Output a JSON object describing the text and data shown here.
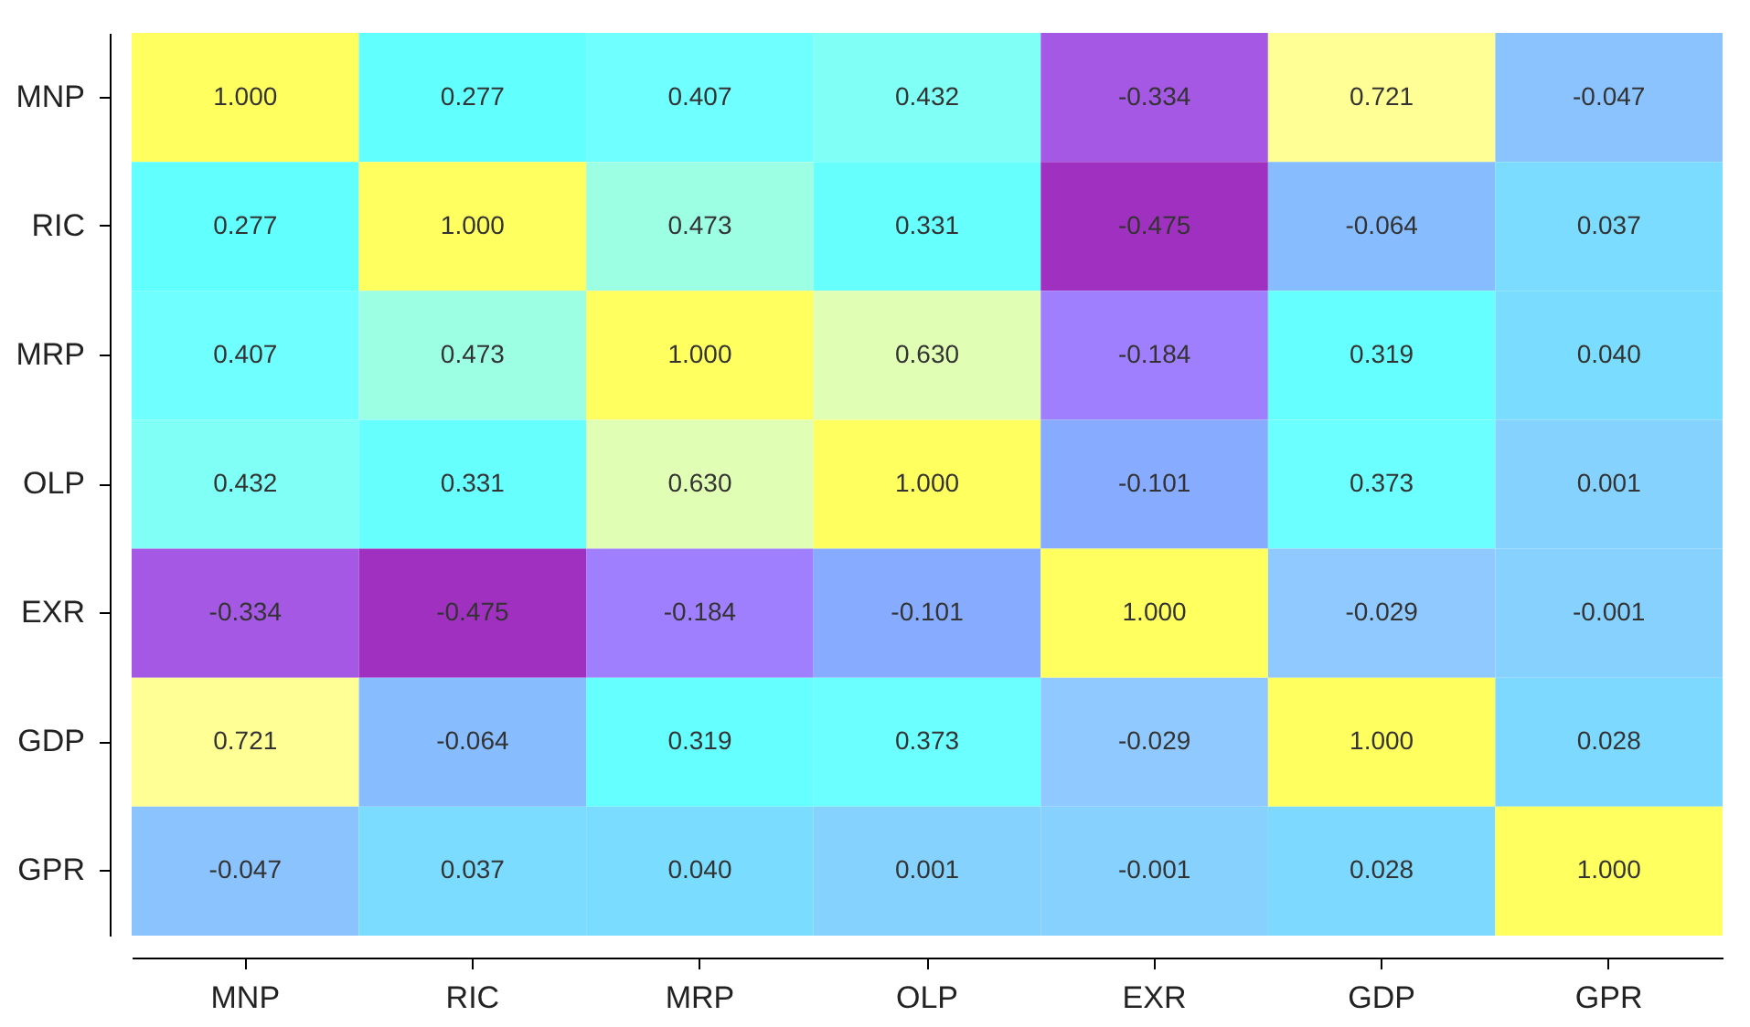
{
  "chart_data": {
    "type": "heatmap",
    "categories": [
      "MNP",
      "RIC",
      "MRP",
      "OLP",
      "EXR",
      "GDP",
      "GPR"
    ],
    "y_categories": [
      "MNP",
      "RIC",
      "MRP",
      "OLP",
      "EXR",
      "GDP",
      "GPR"
    ],
    "cells": [
      [
        1.0,
        0.277,
        0.407,
        0.432,
        -0.334,
        0.721,
        -0.047
      ],
      [
        0.277,
        1.0,
        0.473,
        0.331,
        -0.475,
        -0.064,
        0.037
      ],
      [
        0.407,
        0.473,
        1.0,
        0.63,
        -0.184,
        0.319,
        0.04
      ],
      [
        0.432,
        0.331,
        0.63,
        1.0,
        -0.101,
        0.373,
        0.001
      ],
      [
        -0.334,
        -0.475,
        -0.184,
        -0.101,
        1.0,
        -0.029,
        -0.001
      ],
      [
        0.721,
        -0.064,
        0.319,
        0.373,
        -0.029,
        1.0,
        0.028
      ],
      [
        -0.047,
        0.037,
        0.04,
        0.001,
        -0.001,
        0.028,
        1.0
      ]
    ],
    "cell_labels": [
      [
        "1.000",
        "0.277",
        "0.407",
        "0.432",
        "-0.334",
        "0.721",
        "-0.047"
      ],
      [
        "0.277",
        "1.000",
        "0.473",
        "0.331",
        "-0.475",
        "-0.064",
        "0.037"
      ],
      [
        "0.407",
        "0.473",
        "1.000",
        "0.630",
        "-0.184",
        "0.319",
        "0.040"
      ],
      [
        "0.432",
        "0.331",
        "0.630",
        "1.000",
        "-0.101",
        "0.373",
        "0.001"
      ],
      [
        "-0.334",
        "-0.475",
        "-0.184",
        "-0.101",
        "1.000",
        "-0.029",
        "-0.001"
      ],
      [
        "0.721",
        "-0.064",
        "0.319",
        "0.373",
        "-0.029",
        "1.000",
        "0.028"
      ],
      [
        "-0.047",
        "0.037",
        "0.040",
        "0.001",
        "-0.001",
        "0.028",
        "1.000"
      ]
    ]
  }
}
